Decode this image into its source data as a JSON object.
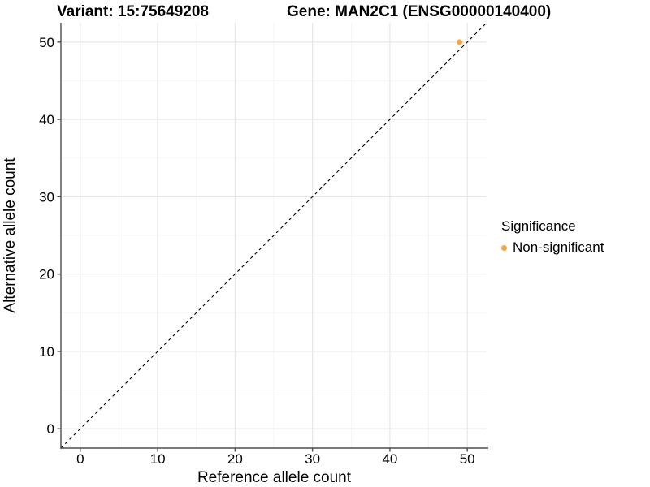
{
  "chart_data": {
    "type": "scatter",
    "titles": [
      "Variant: 15:75649208",
      "Gene: MAN2C1 (ENSG00000140400)"
    ],
    "xlabel": "Reference allele count",
    "ylabel": "Alternative allele count",
    "xlim": [
      -2.5,
      52.5
    ],
    "ylim": [
      -2.5,
      52.5
    ],
    "x_ticks": [
      0,
      10,
      20,
      30,
      40,
      50
    ],
    "y_ticks": [
      0,
      10,
      20,
      30,
      40,
      50
    ],
    "x_minor_ticks": [
      5,
      15,
      25,
      35,
      45
    ],
    "y_minor_ticks": [
      5,
      15,
      25,
      35,
      45
    ],
    "grid": true,
    "identity_line": {
      "type": "abline",
      "slope": 1,
      "intercept": 0,
      "style": "dashed",
      "color": "#000000"
    },
    "series": [
      {
        "name": "Non-significant",
        "color": "#FAA43C",
        "points": [
          {
            "x": 49,
            "y": 50
          }
        ]
      }
    ],
    "legend": {
      "title": "Significance",
      "position": "right"
    },
    "colors": {
      "point_non_significant": "#FAA43C",
      "axis_line": "#4D4D4D",
      "grid_major": "#E5E5E5",
      "grid_minor": "#F2F2F2",
      "text": "#000000",
      "background": "#FFFFFF"
    }
  }
}
